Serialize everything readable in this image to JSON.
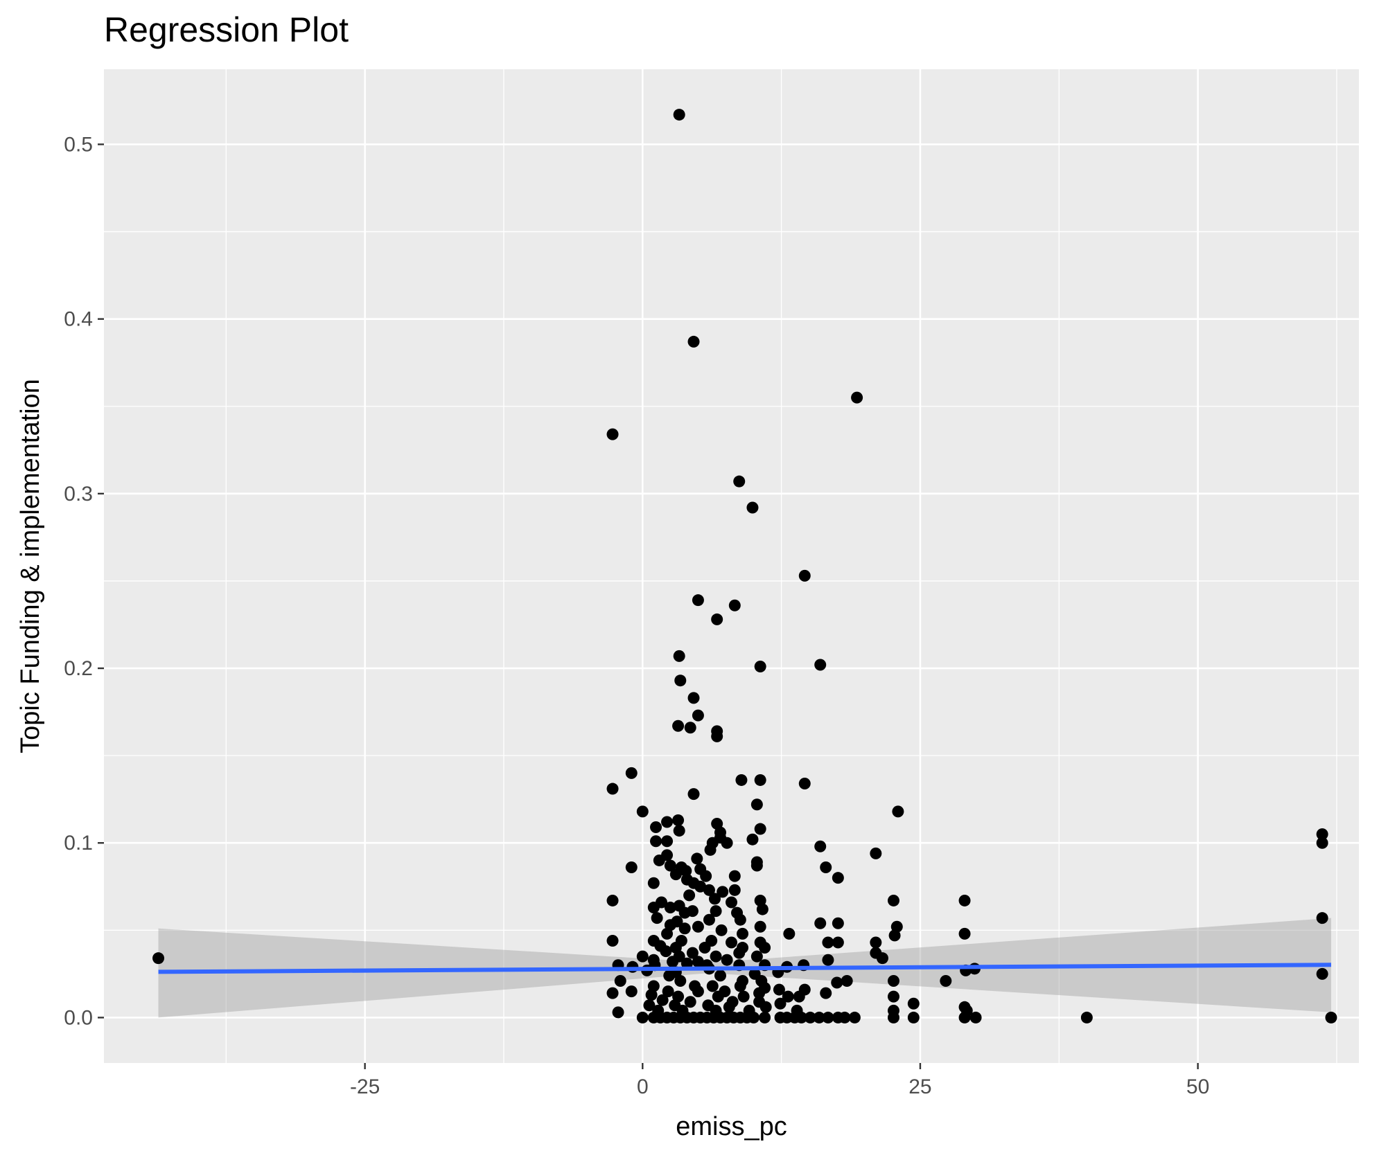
{
  "chart_data": {
    "type": "scatter",
    "title": "Regression Plot",
    "xlabel": "emiss_pc",
    "ylabel": "Topic Funding & implementation",
    "xlim": [
      -48.5,
      64.5
    ],
    "ylim": [
      -0.026,
      0.543
    ],
    "x_ticks": [
      -25,
      0,
      25,
      50
    ],
    "x_tick_labels": [
      "-25",
      "0",
      "25",
      "50"
    ],
    "y_ticks": [
      0.0,
      0.1,
      0.2,
      0.3,
      0.4,
      0.5
    ],
    "y_tick_labels": [
      "0.0",
      "0.1",
      "0.2",
      "0.3",
      "0.4",
      "0.5"
    ],
    "grid": true,
    "points": [
      [
        -43.6,
        0.034
      ],
      [
        3.3,
        0.517
      ],
      [
        4.6,
        0.387
      ],
      [
        19.3,
        0.355
      ],
      [
        -2.7,
        0.334
      ],
      [
        8.7,
        0.307
      ],
      [
        9.9,
        0.292
      ],
      [
        14.6,
        0.253
      ],
      [
        5.0,
        0.239
      ],
      [
        8.3,
        0.236
      ],
      [
        6.7,
        0.228
      ],
      [
        3.3,
        0.207
      ],
      [
        10.6,
        0.201
      ],
      [
        16.0,
        0.202
      ],
      [
        3.4,
        0.193
      ],
      [
        4.6,
        0.183
      ],
      [
        5.0,
        0.173
      ],
      [
        3.2,
        0.167
      ],
      [
        4.3,
        0.166
      ],
      [
        6.7,
        0.164
      ],
      [
        6.7,
        0.161
      ],
      [
        -1.0,
        0.14
      ],
      [
        -2.7,
        0.131
      ],
      [
        8.9,
        0.136
      ],
      [
        10.6,
        0.136
      ],
      [
        14.6,
        0.134
      ],
      [
        4.6,
        0.128
      ],
      [
        10.3,
        0.122
      ],
      [
        0.0,
        0.118
      ],
      [
        23.0,
        0.118
      ],
      [
        3.2,
        0.113
      ],
      [
        2.2,
        0.112
      ],
      [
        6.7,
        0.111
      ],
      [
        1.2,
        0.109
      ],
      [
        3.3,
        0.107
      ],
      [
        10.6,
        0.108
      ],
      [
        7.0,
        0.106
      ],
      [
        7.0,
        0.103
      ],
      [
        1.2,
        0.101
      ],
      [
        2.2,
        0.101
      ],
      [
        6.3,
        0.1
      ],
      [
        7.6,
        0.1
      ],
      [
        9.9,
        0.102
      ],
      [
        16.0,
        0.098
      ],
      [
        6.1,
        0.096
      ],
      [
        21.0,
        0.094
      ],
      [
        1.5,
        0.09
      ],
      [
        4.9,
        0.091
      ],
      [
        2.2,
        0.093
      ],
      [
        10.3,
        0.089
      ],
      [
        10.3,
        0.087
      ],
      [
        -1.0,
        0.086
      ],
      [
        2.5,
        0.087
      ],
      [
        3.5,
        0.086
      ],
      [
        3.9,
        0.084
      ],
      [
        5.2,
        0.085
      ],
      [
        3.0,
        0.082
      ],
      [
        16.5,
        0.086
      ],
      [
        5.7,
        0.081
      ],
      [
        4.0,
        0.079
      ],
      [
        8.3,
        0.081
      ],
      [
        17.6,
        0.08
      ],
      [
        4.6,
        0.077
      ],
      [
        1.0,
        0.077
      ],
      [
        5.2,
        0.075
      ],
      [
        6.0,
        0.073
      ],
      [
        8.3,
        0.073
      ],
      [
        7.2,
        0.072
      ],
      [
        4.2,
        0.07
      ],
      [
        6.5,
        0.068
      ],
      [
        -2.7,
        0.067
      ],
      [
        10.6,
        0.067
      ],
      [
        22.6,
        0.067
      ],
      [
        29.0,
        0.067
      ],
      [
        1.7,
        0.066
      ],
      [
        3.3,
        0.064
      ],
      [
        8.0,
        0.066
      ],
      [
        2.5,
        0.063
      ],
      [
        1.0,
        0.063
      ],
      [
        10.8,
        0.062
      ],
      [
        4.5,
        0.061
      ],
      [
        6.6,
        0.061
      ],
      [
        8.5,
        0.06
      ],
      [
        3.8,
        0.06
      ],
      [
        1.3,
        0.057
      ],
      [
        6.0,
        0.056
      ],
      [
        8.8,
        0.056
      ],
      [
        3.1,
        0.055
      ],
      [
        16.0,
        0.054
      ],
      [
        17.6,
        0.054
      ],
      [
        2.5,
        0.053
      ],
      [
        5.0,
        0.052
      ],
      [
        10.6,
        0.052
      ],
      [
        22.9,
        0.052
      ],
      [
        3.8,
        0.051
      ],
      [
        7.1,
        0.05
      ],
      [
        2.2,
        0.048
      ],
      [
        9.0,
        0.048
      ],
      [
        13.2,
        0.048
      ],
      [
        22.7,
        0.047
      ],
      [
        29.0,
        0.048
      ],
      [
        -2.7,
        0.044
      ],
      [
        1.0,
        0.044
      ],
      [
        3.5,
        0.044
      ],
      [
        6.2,
        0.044
      ],
      [
        8.0,
        0.043
      ],
      [
        10.6,
        0.043
      ],
      [
        16.7,
        0.043
      ],
      [
        17.6,
        0.043
      ],
      [
        21.0,
        0.043
      ],
      [
        61.2,
        0.057
      ],
      [
        1.6,
        0.041
      ],
      [
        3.0,
        0.04
      ],
      [
        5.6,
        0.04
      ],
      [
        9.0,
        0.04
      ],
      [
        11.0,
        0.04
      ],
      [
        2.1,
        0.038
      ],
      [
        4.5,
        0.037
      ],
      [
        8.7,
        0.037
      ],
      [
        21.0,
        0.037
      ],
      [
        0.0,
        0.035
      ],
      [
        3.3,
        0.035
      ],
      [
        6.6,
        0.035
      ],
      [
        10.3,
        0.035
      ],
      [
        21.6,
        0.034
      ],
      [
        1.0,
        0.033
      ],
      [
        2.7,
        0.032
      ],
      [
        5.0,
        0.032
      ],
      [
        7.6,
        0.033
      ],
      [
        16.7,
        0.033
      ],
      [
        -2.2,
        0.03
      ],
      [
        1.1,
        0.03
      ],
      [
        4.0,
        0.031
      ],
      [
        5.8,
        0.03
      ],
      [
        8.7,
        0.03
      ],
      [
        11.0,
        0.03
      ],
      [
        13.0,
        0.029
      ],
      [
        14.5,
        0.03
      ],
      [
        -0.9,
        0.029
      ],
      [
        6.0,
        0.028
      ],
      [
        29.1,
        0.027
      ],
      [
        29.9,
        0.028
      ],
      [
        0.4,
        0.027
      ],
      [
        3.0,
        0.026
      ],
      [
        12.2,
        0.026
      ],
      [
        2.4,
        0.024
      ],
      [
        7.0,
        0.024
      ],
      [
        10.1,
        0.025
      ],
      [
        61.2,
        0.025
      ],
      [
        -2.0,
        0.021
      ],
      [
        3.4,
        0.021
      ],
      [
        9.0,
        0.021
      ],
      [
        10.7,
        0.021
      ],
      [
        17.5,
        0.02
      ],
      [
        18.4,
        0.021
      ],
      [
        22.6,
        0.021
      ],
      [
        27.3,
        0.021
      ],
      [
        1.0,
        0.018
      ],
      [
        4.7,
        0.018
      ],
      [
        6.3,
        0.018
      ],
      [
        8.8,
        0.018
      ],
      [
        11.0,
        0.017
      ],
      [
        12.3,
        0.016
      ],
      [
        14.6,
        0.016
      ],
      [
        -1.0,
        0.015
      ],
      [
        2.3,
        0.015
      ],
      [
        5.0,
        0.015
      ],
      [
        7.4,
        0.015
      ],
      [
        10.5,
        0.014
      ],
      [
        16.5,
        0.014
      ],
      [
        -2.7,
        0.014
      ],
      [
        0.8,
        0.013
      ],
      [
        3.2,
        0.012
      ],
      [
        6.8,
        0.012
      ],
      [
        9.1,
        0.012
      ],
      [
        13.1,
        0.012
      ],
      [
        14.1,
        0.012
      ],
      [
        22.6,
        0.012
      ],
      [
        1.8,
        0.01
      ],
      [
        4.3,
        0.009
      ],
      [
        8.1,
        0.009
      ],
      [
        10.5,
        0.009
      ],
      [
        12.4,
        0.008
      ],
      [
        24.4,
        0.008
      ],
      [
        0.6,
        0.007
      ],
      [
        2.9,
        0.007
      ],
      [
        5.9,
        0.007
      ],
      [
        7.8,
        0.006
      ],
      [
        11.1,
        0.006
      ],
      [
        29.0,
        0.006
      ],
      [
        -2.2,
        0.003
      ],
      [
        1.4,
        0.004
      ],
      [
        3.6,
        0.004
      ],
      [
        6.6,
        0.004
      ],
      [
        9.6,
        0.004
      ],
      [
        13.9,
        0.004
      ],
      [
        22.6,
        0.004
      ],
      [
        29.2,
        0.004
      ],
      [
        0.0,
        0.0
      ],
      [
        1.0,
        0.0
      ],
      [
        1.6,
        0.0
      ],
      [
        2.2,
        0.0
      ],
      [
        2.8,
        0.0
      ],
      [
        3.4,
        0.0
      ],
      [
        4.0,
        0.0
      ],
      [
        4.6,
        0.0
      ],
      [
        5.2,
        0.0
      ],
      [
        5.8,
        0.0
      ],
      [
        6.4,
        0.0
      ],
      [
        7.0,
        0.0
      ],
      [
        7.6,
        0.0
      ],
      [
        8.2,
        0.0
      ],
      [
        8.8,
        0.0
      ],
      [
        9.4,
        0.0
      ],
      [
        10.0,
        0.0
      ],
      [
        11.0,
        0.0
      ],
      [
        12.4,
        0.0
      ],
      [
        13.0,
        0.0
      ],
      [
        13.7,
        0.0
      ],
      [
        14.3,
        0.0
      ],
      [
        15.1,
        0.0
      ],
      [
        15.9,
        0.0
      ],
      [
        16.7,
        0.0
      ],
      [
        17.6,
        0.0
      ],
      [
        18.2,
        0.0
      ],
      [
        19.1,
        0.0
      ],
      [
        22.6,
        0.0
      ],
      [
        24.4,
        0.0
      ],
      [
        29.0,
        0.0
      ],
      [
        30.0,
        0.0
      ],
      [
        40.0,
        0.0
      ],
      [
        62.0,
        0.0
      ],
      [
        61.2,
        0.1
      ],
      [
        61.2,
        0.105
      ]
    ],
    "regression_line": {
      "x": [
        -43.6,
        62.0
      ],
      "y": [
        0.0262,
        0.0302
      ],
      "ci_lower": [
        0.0,
        0.003
      ],
      "ci_upper": [
        0.051,
        0.057
      ],
      "ci_mid_x": 6.0,
      "ci_mid_lower": 0.0255,
      "ci_mid_upper": 0.0315
    },
    "colors": {
      "panel_background": "#ebebeb",
      "grid": "#ffffff",
      "points": "#000000",
      "line": "#3366ff",
      "ci_band": "#999999"
    }
  }
}
